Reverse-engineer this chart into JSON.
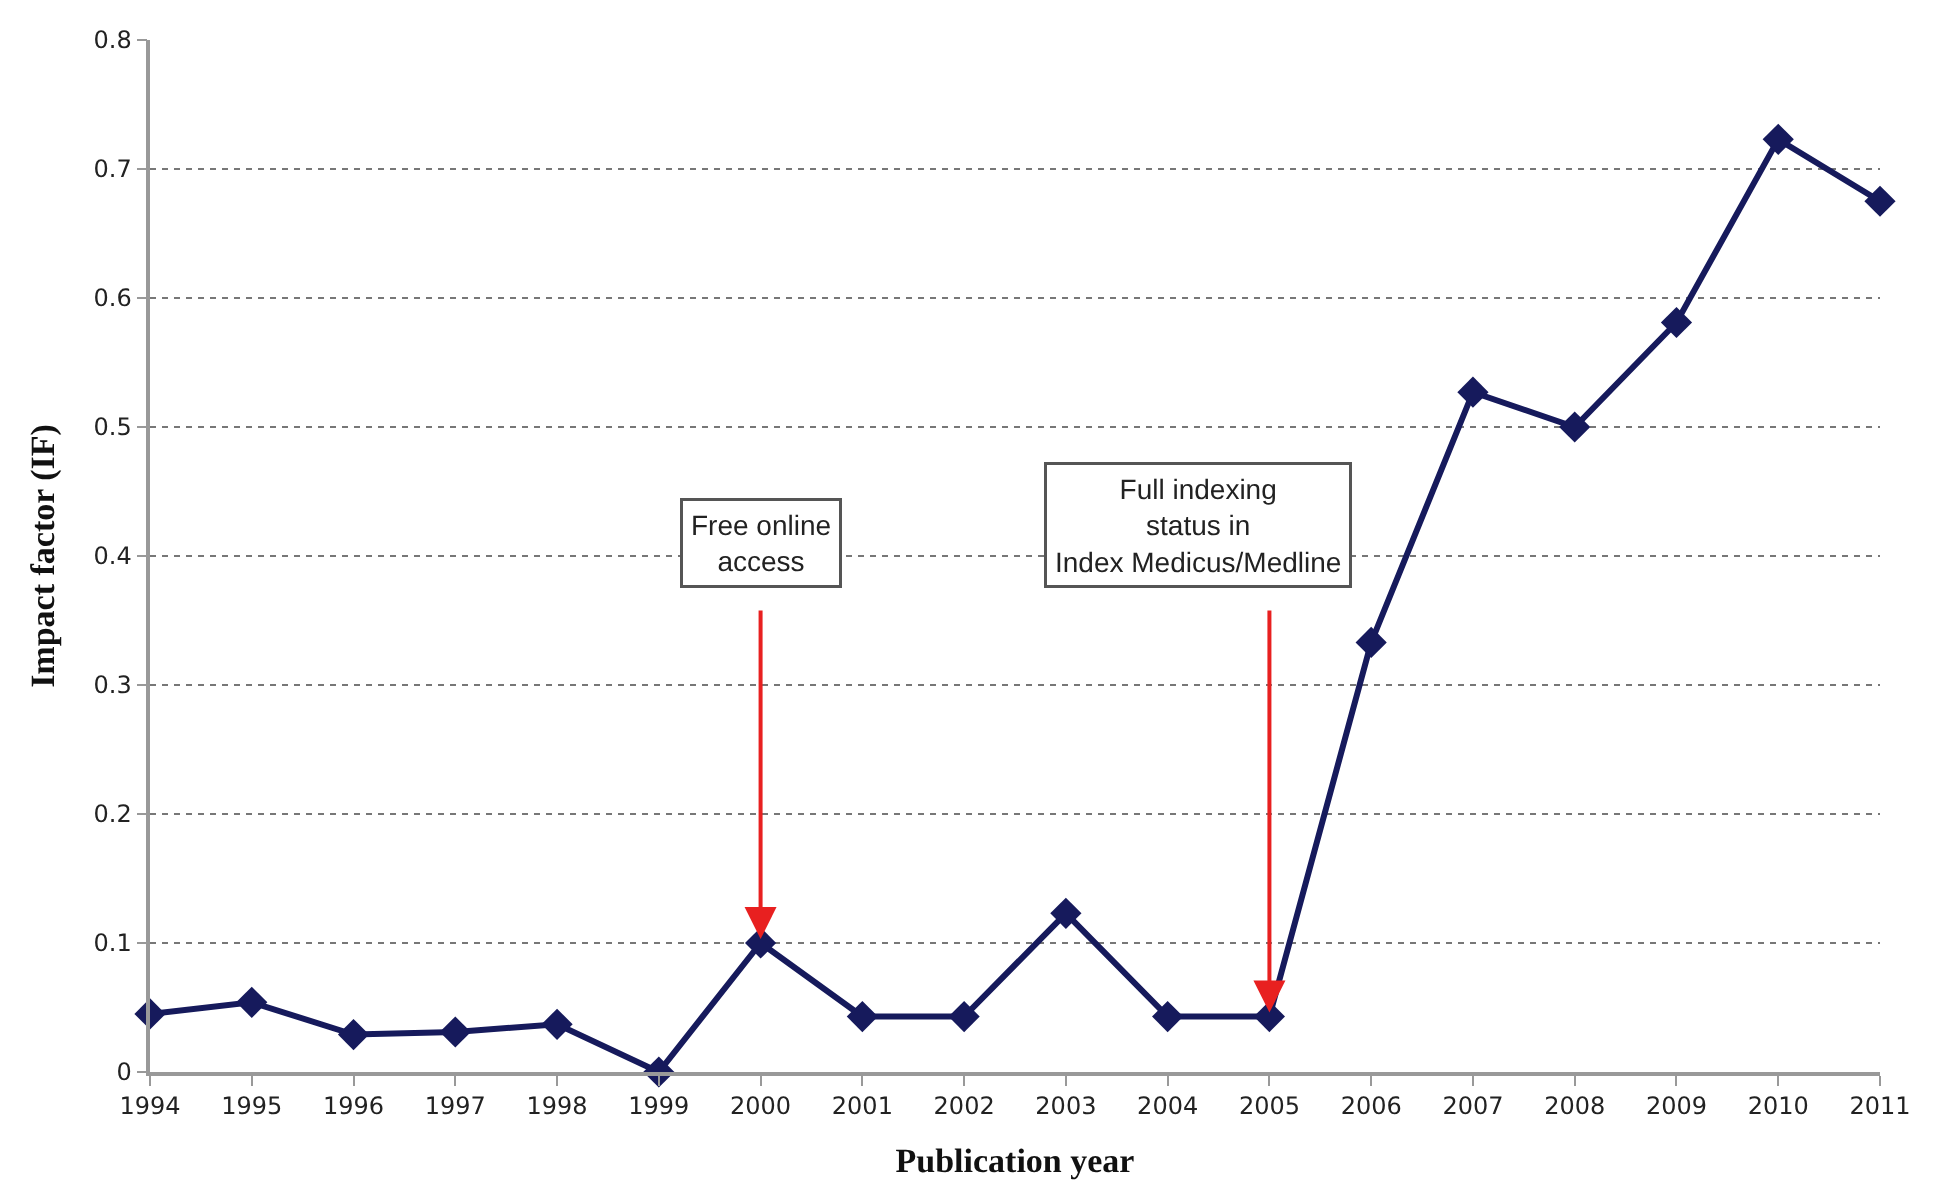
{
  "chart_data": {
    "type": "line",
    "xlabel": "Publication year",
    "ylabel": "Impact factor (IF)",
    "x": [
      1994,
      1995,
      1996,
      1997,
      1998,
      1999,
      2000,
      2001,
      2002,
      2003,
      2004,
      2005,
      2006,
      2007,
      2008,
      2009,
      2010,
      2011
    ],
    "series": [
      {
        "color": "#161a5c",
        "values": [
          0.045,
          0.054,
          0.029,
          0.031,
          0.037,
          0.0,
          0.1,
          0.043,
          0.043,
          0.123,
          0.043,
          0.043,
          0.333,
          0.527,
          0.5,
          0.581,
          0.723,
          0.675
        ]
      }
    ],
    "xlim": [
      1994,
      2011
    ],
    "xticks": [
      1994,
      1995,
      1996,
      1997,
      1998,
      1999,
      2000,
      2001,
      2002,
      2003,
      2004,
      2005,
      2006,
      2007,
      2008,
      2009,
      2010,
      2011
    ],
    "ylim": [
      0,
      0.8
    ],
    "yticks": [
      0,
      0.1,
      0.2,
      0.3,
      0.4,
      0.5,
      0.6,
      0.7,
      0.8
    ],
    "annotations": [
      {
        "text": "Free online\naccess",
        "x": 2000,
        "y": 0.1
      },
      {
        "text": "Full indexing\nstatus in\nIndex Medicus/Medline",
        "x": 2005,
        "y": 0.043
      }
    ],
    "grid": "y",
    "legend": false,
    "marker": "diamond",
    "line_style": "solid"
  }
}
